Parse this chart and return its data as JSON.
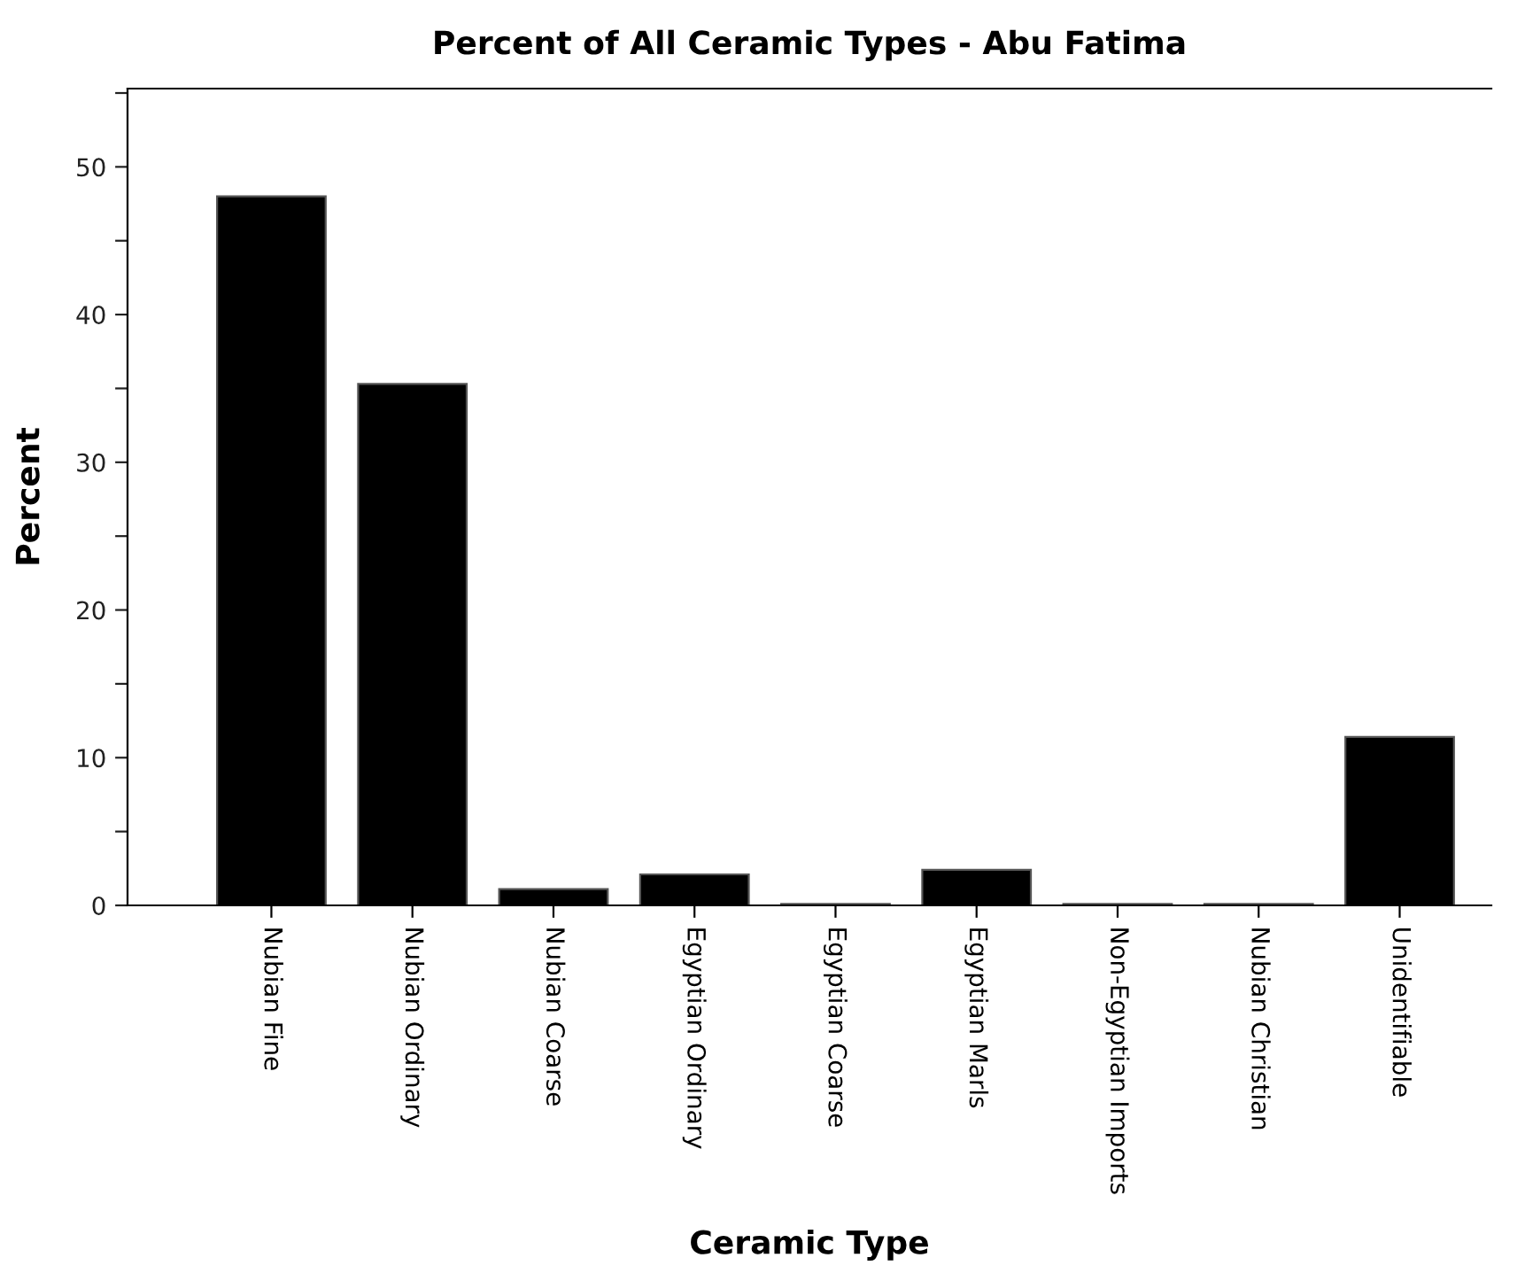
{
  "chart_data": {
    "type": "bar",
    "title": "Percent of All Ceramic Types - Abu Fatima",
    "xlabel": "Ceramic Type",
    "ylabel": "Percent",
    "categories": [
      "Nubian Fine",
      "Nubian Ordinary",
      "Nubian Coarse",
      "Egyptian Ordinary",
      "Egyptian Coarse",
      "Egyptian Marls",
      "Non-Egyptian Imports",
      "Nubian Christian",
      "Unidentifiable"
    ],
    "values": [
      48.0,
      35.3,
      1.1,
      2.1,
      0.1,
      2.4,
      0.1,
      0.1,
      11.4
    ],
    "color": "#000000",
    "ylim": [
      0,
      55.3
    ],
    "yticks": [
      0,
      {
        "value": 5,
        "label": null
      },
      10,
      {
        "value": 15,
        "label": null
      },
      20,
      {
        "value": 25,
        "label": null
      },
      30,
      {
        "value": 35,
        "label": null
      },
      40,
      {
        "value": 45,
        "label": null
      },
      50,
      {
        "value": 55,
        "label": null
      }
    ],
    "grid": false,
    "legend": false
  }
}
